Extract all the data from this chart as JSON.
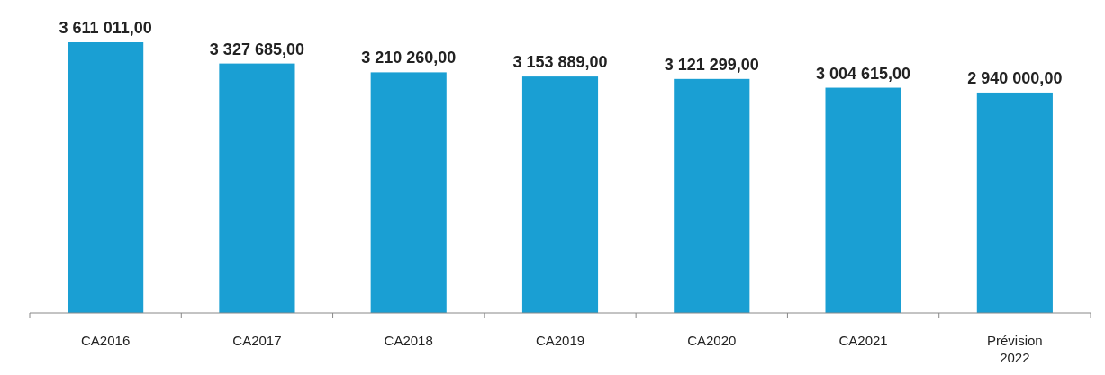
{
  "chart_data": {
    "type": "bar",
    "categories": [
      "CA2016",
      "CA2017",
      "CA2018",
      "CA2019",
      "CA2020",
      "CA2021",
      "Prévision 2022"
    ],
    "values": [
      3611011,
      3327685,
      3210260,
      3153889,
      3121299,
      3004615,
      2940000
    ],
    "value_labels": [
      "3 611 011,00",
      "3 327 685,00",
      "3 210 260,00",
      "3 153 889,00",
      "3 121 299,00",
      "3 004 615,00",
      "2 940 000,00"
    ],
    "color": "#1a9fd3"
  }
}
